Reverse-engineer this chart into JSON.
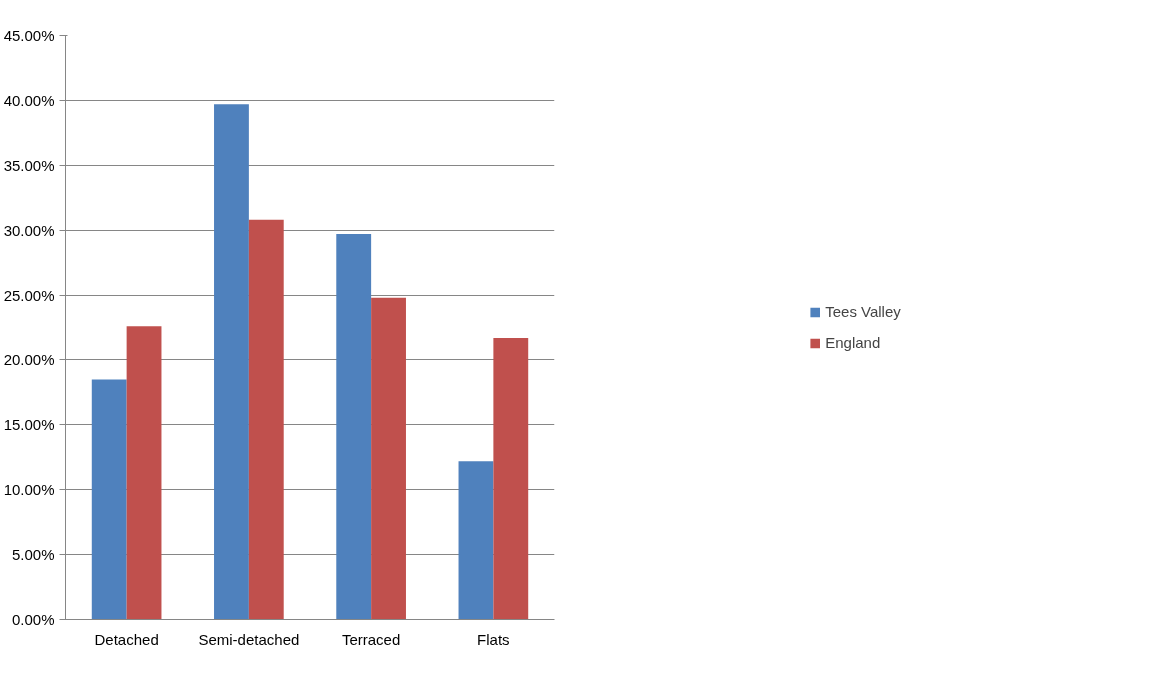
{
  "chart_data": {
    "type": "bar",
    "categories": [
      "Detached",
      "Semi-detached",
      "Terraced",
      "Flats"
    ],
    "series": [
      {
        "name": "Tees Valley",
        "color": "#4f81bd",
        "values": [
          18.5,
          39.7,
          29.7,
          12.2
        ]
      },
      {
        "name": "England",
        "color": "#c0504d",
        "values": [
          22.6,
          30.8,
          24.8,
          21.7
        ]
      }
    ],
    "ylim": [
      0,
      45
    ],
    "yticks": [
      {
        "value": 0,
        "label": "0.00%"
      },
      {
        "value": 5,
        "label": "5.00%"
      },
      {
        "value": 10,
        "label": "10.00%"
      },
      {
        "value": 15,
        "label": "15.00%"
      },
      {
        "value": 20,
        "label": "20.00%"
      },
      {
        "value": 25,
        "label": "25.00%"
      },
      {
        "value": 30,
        "label": "30.00%"
      },
      {
        "value": 35,
        "label": "35.00%"
      },
      {
        "value": 40,
        "label": "40.00%"
      },
      {
        "value": 45,
        "label": "45.00%"
      }
    ],
    "grid": "y",
    "legend": "right"
  }
}
